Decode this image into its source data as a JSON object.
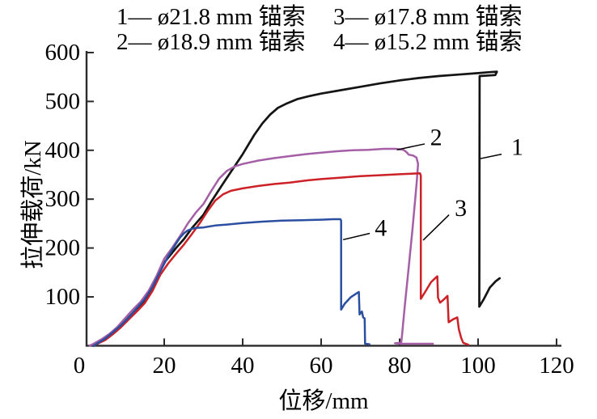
{
  "chart_data": {
    "type": "line",
    "title": "",
    "xlabel": "位移/mm",
    "ylabel": "拉伸载荷/kN",
    "xlim": [
      0,
      120
    ],
    "ylim": [
      0,
      600
    ],
    "x_ticks": [
      0,
      20,
      40,
      60,
      80,
      100,
      120
    ],
    "y_ticks": [
      100,
      200,
      300,
      400,
      500,
      600
    ],
    "grid": false,
    "legend_position": "top",
    "legend": {
      "row1": [
        "1— ø21.8 mm 锚索",
        "3— ø17.8 mm 锚索"
      ],
      "row2": [
        "2— ø18.9 mm 锚索",
        "4— ø15.2 mm 锚索"
      ]
    },
    "axis_color": "#2b2b2b",
    "series": [
      {
        "name": "1 — ø21.8 mm 锚索",
        "color": "#141414",
        "width": 2.7,
        "points": [
          [
            2,
            0
          ],
          [
            3,
            4
          ],
          [
            5,
            14
          ],
          [
            7,
            27
          ],
          [
            10,
            50
          ],
          [
            13,
            76
          ],
          [
            15,
            93
          ],
          [
            17,
            118
          ],
          [
            20,
            170
          ],
          [
            23,
            200
          ],
          [
            25,
            218
          ],
          [
            27,
            240
          ],
          [
            30,
            268
          ],
          [
            32,
            295
          ],
          [
            35,
            332
          ],
          [
            38,
            368
          ],
          [
            40,
            392
          ],
          [
            43,
            432
          ],
          [
            45,
            455
          ],
          [
            47,
            473
          ],
          [
            49,
            487
          ],
          [
            51,
            495
          ],
          [
            54,
            505
          ],
          [
            57,
            511
          ],
          [
            60,
            516
          ],
          [
            65,
            523
          ],
          [
            70,
            530
          ],
          [
            75,
            537
          ],
          [
            80,
            543
          ],
          [
            85,
            548
          ],
          [
            90,
            552
          ],
          [
            95,
            555
          ],
          [
            100,
            558
          ],
          [
            103,
            560
          ],
          [
            104.8,
            561
          ],
          [
            104.4,
            554
          ],
          [
            100.4,
            552
          ],
          [
            100.3,
            80
          ],
          [
            101.5,
            96
          ],
          [
            103,
            119
          ],
          [
            104.5,
            132
          ],
          [
            105.5,
            138
          ]
        ]
      },
      {
        "name": "2 — ø18.9 mm 锚索",
        "color": "#a55fa6",
        "width": 2.5,
        "points": [
          [
            1,
            0
          ],
          [
            2,
            4
          ],
          [
            4,
            13
          ],
          [
            6,
            24
          ],
          [
            8,
            38
          ],
          [
            10,
            56
          ],
          [
            12,
            74
          ],
          [
            14,
            90
          ],
          [
            16,
            112
          ],
          [
            18,
            142
          ],
          [
            20,
            178
          ],
          [
            22,
            200
          ],
          [
            24,
            224
          ],
          [
            26,
            250
          ],
          [
            28,
            272
          ],
          [
            30,
            290
          ],
          [
            32,
            317
          ],
          [
            34,
            342
          ],
          [
            36,
            358
          ],
          [
            38,
            367
          ],
          [
            40,
            372
          ],
          [
            44,
            379
          ],
          [
            48,
            384
          ],
          [
            52,
            388
          ],
          [
            56,
            392
          ],
          [
            60,
            395
          ],
          [
            64,
            398
          ],
          [
            68,
            400
          ],
          [
            72,
            401
          ],
          [
            76,
            403
          ],
          [
            79,
            403
          ],
          [
            81,
            401
          ],
          [
            81.8,
            396
          ],
          [
            82.3,
            391
          ],
          [
            83.5,
            389
          ],
          [
            84.3,
            385
          ],
          [
            84.7,
            372
          ],
          [
            84.3,
            330
          ],
          [
            83.3,
            240
          ],
          [
            82.3,
            160
          ],
          [
            81.3,
            80
          ],
          [
            80.6,
            20
          ],
          [
            80.4,
            6
          ],
          [
            78.8,
            5
          ],
          [
            80,
            4
          ],
          [
            88.5,
            4
          ]
        ]
      },
      {
        "name": "3 — ø17.8 mm 锚索",
        "color": "#cc2127",
        "width": 2.5,
        "points": [
          [
            2,
            0
          ],
          [
            3,
            4
          ],
          [
            5,
            12
          ],
          [
            7,
            24
          ],
          [
            9,
            38
          ],
          [
            11,
            54
          ],
          [
            13,
            70
          ],
          [
            15,
            87
          ],
          [
            17,
            112
          ],
          [
            19,
            145
          ],
          [
            21,
            168
          ],
          [
            23,
            188
          ],
          [
            25,
            207
          ],
          [
            27,
            228
          ],
          [
            29,
            250
          ],
          [
            31,
            275
          ],
          [
            33,
            297
          ],
          [
            35,
            310
          ],
          [
            37,
            317
          ],
          [
            40,
            322
          ],
          [
            44,
            327
          ],
          [
            48,
            331
          ],
          [
            52,
            334
          ],
          [
            56,
            338
          ],
          [
            60,
            341
          ],
          [
            65,
            344
          ],
          [
            70,
            347
          ],
          [
            75,
            349
          ],
          [
            80,
            351
          ],
          [
            83,
            352
          ],
          [
            85.2,
            353
          ],
          [
            85.4,
            348
          ],
          [
            85.4,
            96
          ],
          [
            86.5,
            110
          ],
          [
            88,
            130
          ],
          [
            89.3,
            140
          ],
          [
            89.6,
            142
          ],
          [
            89.8,
            98
          ],
          [
            90.3,
            88
          ],
          [
            91.2,
            94
          ],
          [
            92.2,
            102
          ],
          [
            92.5,
            48
          ],
          [
            93.6,
            54
          ],
          [
            94.7,
            58
          ],
          [
            95.1,
            34
          ],
          [
            95.7,
            16
          ],
          [
            96.2,
            6
          ],
          [
            97.5,
            2
          ]
        ]
      },
      {
        "name": "4 — ø15.2 mm 锚索",
        "color": "#2b4fa0",
        "width": 2.5,
        "points": [
          [
            2,
            0
          ],
          [
            3,
            5
          ],
          [
            5,
            15
          ],
          [
            7,
            28
          ],
          [
            9,
            42
          ],
          [
            11,
            58
          ],
          [
            13,
            77
          ],
          [
            15,
            95
          ],
          [
            17,
            120
          ],
          [
            19,
            152
          ],
          [
            21,
            183
          ],
          [
            22,
            196
          ],
          [
            23,
            209
          ],
          [
            24,
            221
          ],
          [
            25,
            230
          ],
          [
            26,
            236
          ],
          [
            27,
            239
          ],
          [
            28,
            241
          ],
          [
            30,
            242
          ],
          [
            33,
            246
          ],
          [
            36,
            248
          ],
          [
            40,
            251
          ],
          [
            45,
            254
          ],
          [
            50,
            256
          ],
          [
            55,
            257
          ],
          [
            60,
            258
          ],
          [
            63,
            259
          ],
          [
            64.9,
            259
          ],
          [
            65.1,
            256
          ],
          [
            65.1,
            74
          ],
          [
            66,
            86
          ],
          [
            67.5,
            99
          ],
          [
            69,
            107
          ],
          [
            69.6,
            110
          ],
          [
            69.8,
            64
          ],
          [
            70.4,
            70
          ],
          [
            70.7,
            58
          ],
          [
            71.1,
            56
          ],
          [
            71.2,
            4
          ],
          [
            72.3,
            3
          ]
        ]
      }
    ],
    "annotations": [
      {
        "label": "1",
        "tx": 110.0,
        "ty": 406,
        "lx1": 106.0,
        "ly1": 392,
        "lx2": 100.6,
        "ly2": 383
      },
      {
        "label": "2",
        "tx": 89.3,
        "ty": 426,
        "lx1": 86.4,
        "ly1": 413,
        "lx2": 79.3,
        "ly2": 401
      },
      {
        "label": "3",
        "tx": 95.6,
        "ty": 281,
        "lx1": 92.6,
        "ly1": 268,
        "lx2": 86.0,
        "ly2": 216
      },
      {
        "label": "4",
        "tx": 75.2,
        "ty": 241,
        "lx1": 72.4,
        "ly1": 230,
        "lx2": 65.6,
        "ly2": 217
      }
    ]
  }
}
